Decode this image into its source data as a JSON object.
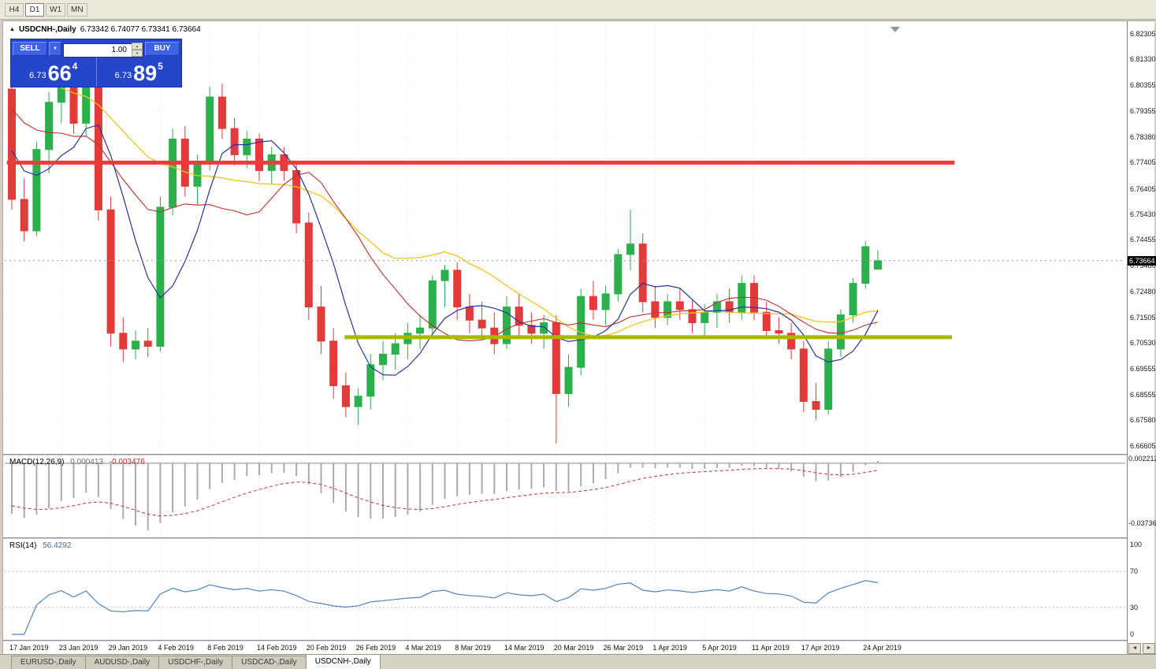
{
  "colors": {
    "up": "#2bb14c",
    "down": "#e23b3a",
    "ma_fast": "#27339e",
    "ma_mid": "#c03028",
    "ma_slow": "#edc51e",
    "macd_hist": "#ababab",
    "macd_signal": "#cc2f2f",
    "rsi_line": "#4f86c0",
    "resistance_line": "#ed3b3b",
    "support_line": "#abb800",
    "grid": "#e3e3e3",
    "price_tag_bg": "#000000",
    "panel_blue": "#2545cb"
  },
  "toolbar": {
    "timeframes": [
      "H4",
      "D1",
      "W1",
      "MN"
    ],
    "active_timeframe": "D1"
  },
  "chart_header": {
    "collapse_icon": "▲",
    "title": "USDCNH-,Daily",
    "ohlc": "6.73342 6.74077 6.73341 6.73664"
  },
  "trade_panel": {
    "sell_label": "SELL",
    "buy_label": "BUY",
    "volume": "1.00",
    "dropdown_icon": "▼",
    "spin_up_icon": "▲",
    "spin_down_icon": "▼",
    "sell_price": {
      "small": "6.73",
      "big": "66",
      "sup": "4"
    },
    "buy_price": {
      "small": "6.73",
      "big": "89",
      "sup": "5"
    }
  },
  "price_axis_labels": [
    "6.82305",
    "6.81330",
    "6.80355",
    "6.79355",
    "6.78380",
    "6.77405",
    "6.76405",
    "6.75430",
    "6.74455",
    "6.73480",
    "6.72480",
    "6.71505",
    "6.70530",
    "6.69555",
    "6.68555",
    "6.67580",
    "6.66605"
  ],
  "date_ticks": [
    {
      "i": 0,
      "label": "17 Jan 2019"
    },
    {
      "i": 4,
      "label": "23 Jan 2019"
    },
    {
      "i": 8,
      "label": "29 Jan 2019"
    },
    {
      "i": 12,
      "label": "4 Feb 2019"
    },
    {
      "i": 16,
      "label": "8 Feb 2019"
    },
    {
      "i": 20,
      "label": "14 Feb 2019"
    },
    {
      "i": 24,
      "label": "20 Feb 2019"
    },
    {
      "i": 28,
      "label": "26 Feb 2019"
    },
    {
      "i": 32,
      "label": "4 Mar 2019"
    },
    {
      "i": 36,
      "label": "8 Mar 2019"
    },
    {
      "i": 40,
      "label": "14 Mar 2019"
    },
    {
      "i": 44,
      "label": "20 Mar 2019"
    },
    {
      "i": 48,
      "label": "26 Mar 2019"
    },
    {
      "i": 52,
      "label": "1 Apr 2019"
    },
    {
      "i": 56,
      "label": "5 Apr 2019"
    },
    {
      "i": 60,
      "label": "11 Apr 2019"
    },
    {
      "i": 64,
      "label": "17 Apr 2019"
    },
    {
      "i": 69,
      "label": "24 Apr 2019"
    }
  ],
  "nav": {
    "left_icon": "◄",
    "right_icon": "►"
  },
  "bottom_tabs": {
    "tabs": [
      "EURUSD-,Daily",
      "AUDUSD-,Daily",
      "USDCHF-,Daily",
      "USDCAD-,Daily",
      "USDCNH-,Daily"
    ],
    "active": "USDCNH-,Daily"
  },
  "chart_data": {
    "type": "candlestick",
    "symbol": "USDCNH-",
    "timeframe": "Daily",
    "price_top": 6.82725,
    "price_bottom": 6.66333,
    "current_price": 6.73664,
    "current_price_label": "6.73664",
    "candles": [
      [
        "17 Jan",
        6.802,
        6.806,
        6.756,
        6.76
      ],
      [
        "18 Jan",
        6.76,
        6.768,
        6.744,
        6.748
      ],
      [
        "21 Jan",
        6.748,
        6.782,
        6.746,
        6.779
      ],
      [
        "22 Jan",
        6.779,
        6.801,
        6.77,
        6.797
      ],
      [
        "23 Jan",
        6.797,
        6.81,
        6.789,
        6.806
      ],
      [
        "24 Jan",
        6.806,
        6.809,
        6.785,
        6.789
      ],
      [
        "25 Jan",
        6.789,
        6.806,
        6.784,
        6.803
      ],
      [
        "28 Jan",
        6.803,
        6.805,
        6.752,
        6.756
      ],
      [
        "29 Jan",
        6.756,
        6.761,
        6.704,
        6.709
      ],
      [
        "30 Jan",
        6.709,
        6.715,
        6.698,
        6.703
      ],
      [
        "31 Jan",
        6.703,
        6.71,
        6.699,
        6.706
      ],
      [
        "1 Feb",
        6.706,
        6.711,
        6.7,
        6.704
      ],
      [
        "4 Feb",
        6.704,
        6.761,
        6.702,
        6.757
      ],
      [
        "5 Feb",
        6.757,
        6.787,
        6.754,
        6.783
      ],
      [
        "6 Feb",
        6.783,
        6.788,
        6.761,
        6.765
      ],
      [
        "7 Feb",
        6.765,
        6.777,
        6.758,
        6.774
      ],
      [
        "8 Feb",
        6.774,
        6.803,
        6.771,
        6.799
      ],
      [
        "11 Feb",
        6.799,
        6.804,
        6.783,
        6.787
      ],
      [
        "12 Feb",
        6.787,
        6.791,
        6.773,
        6.777
      ],
      [
        "13 Feb",
        6.777,
        6.786,
        6.772,
        6.783
      ],
      [
        "14 Feb",
        6.783,
        6.785,
        6.767,
        6.771
      ],
      [
        "15 Feb",
        6.771,
        6.78,
        6.766,
        6.777
      ],
      [
        "18 Feb",
        6.777,
        6.78,
        6.767,
        6.771
      ],
      [
        "19 Feb",
        6.771,
        6.774,
        6.747,
        6.751
      ],
      [
        "20 Feb",
        6.751,
        6.755,
        6.714,
        6.719
      ],
      [
        "21 Feb",
        6.719,
        6.727,
        6.701,
        6.706
      ],
      [
        "22 Feb",
        6.706,
        6.711,
        6.684,
        6.689
      ],
      [
        "25 Feb",
        6.689,
        6.694,
        6.677,
        6.681
      ],
      [
        "26 Feb",
        6.681,
        6.688,
        6.674,
        6.685
      ],
      [
        "27 Feb",
        6.685,
        6.701,
        6.68,
        6.697
      ],
      [
        "28 Feb",
        6.697,
        6.706,
        6.691,
        6.701
      ],
      [
        "1 Mar",
        6.701,
        6.709,
        6.695,
        6.705
      ],
      [
        "4 Mar",
        6.705,
        6.713,
        6.699,
        6.709
      ],
      [
        "5 Mar",
        6.709,
        6.716,
        6.703,
        6.711
      ],
      [
        "6 Mar",
        6.711,
        6.731,
        6.709,
        6.729
      ],
      [
        "7 Mar",
        6.729,
        6.735,
        6.719,
        6.733
      ],
      [
        "8 Mar",
        6.733,
        6.736,
        6.714,
        6.719
      ],
      [
        "11 Mar",
        6.719,
        6.724,
        6.709,
        6.714
      ],
      [
        "12 Mar",
        6.714,
        6.721,
        6.707,
        6.711
      ],
      [
        "13 Mar",
        6.711,
        6.717,
        6.701,
        6.705
      ],
      [
        "14 Mar",
        6.705,
        6.723,
        6.703,
        6.719
      ],
      [
        "15 Mar",
        6.719,
        6.724,
        6.708,
        6.712
      ],
      [
        "18 Mar",
        6.712,
        6.717,
        6.705,
        6.709
      ],
      [
        "19 Mar",
        6.709,
        6.716,
        6.703,
        6.713
      ],
      [
        "20 Mar",
        6.713,
        6.716,
        6.667,
        6.686
      ],
      [
        "21 Mar",
        6.686,
        6.701,
        6.681,
        6.696
      ],
      [
        "22 Mar",
        6.696,
        6.726,
        6.693,
        6.723
      ],
      [
        "25 Mar",
        6.723,
        6.729,
        6.714,
        6.718
      ],
      [
        "26 Mar",
        6.718,
        6.727,
        6.712,
        6.724
      ],
      [
        "27 Mar",
        6.724,
        6.741,
        6.721,
        6.739
      ],
      [
        "28 Mar",
        6.739,
        6.756,
        6.733,
        6.743
      ],
      [
        "29 Mar",
        6.743,
        6.747,
        6.717,
        6.721
      ],
      [
        "1 Apr",
        6.721,
        6.727,
        6.711,
        6.715
      ],
      [
        "2 Apr",
        6.715,
        6.724,
        6.712,
        6.721
      ],
      [
        "3 Apr",
        6.721,
        6.726,
        6.714,
        6.718
      ],
      [
        "4 Apr",
        6.718,
        6.722,
        6.709,
        6.713
      ],
      [
        "5 Apr",
        6.713,
        6.72,
        6.708,
        6.717
      ],
      [
        "8 Apr",
        6.717,
        6.724,
        6.711,
        6.721
      ],
      [
        "9 Apr",
        6.721,
        6.726,
        6.713,
        6.717
      ],
      [
        "10 Apr",
        6.717,
        6.731,
        6.714,
        6.728
      ],
      [
        "11 Apr",
        6.728,
        6.731,
        6.714,
        6.717
      ],
      [
        "12 Apr",
        6.717,
        6.721,
        6.707,
        6.71
      ],
      [
        "15 Apr",
        6.71,
        6.715,
        6.705,
        6.709
      ],
      [
        "16 Apr",
        6.709,
        6.713,
        6.699,
        6.703
      ],
      [
        "17 Apr",
        6.703,
        6.706,
        6.679,
        6.683
      ],
      [
        "18 Apr",
        6.683,
        6.69,
        6.676,
        6.68
      ],
      [
        "19 Apr",
        6.68,
        6.706,
        6.678,
        6.703
      ],
      [
        "22 Apr",
        6.703,
        6.718,
        6.7,
        6.716
      ],
      [
        "23 Apr",
        6.716,
        6.73,
        6.713,
        6.728
      ],
      [
        "24 Apr",
        6.728,
        6.744,
        6.726,
        6.742
      ],
      [
        "25 Apr",
        6.73342,
        6.74077,
        6.73341,
        6.73664
      ]
    ],
    "prehistory_closes": [
      6.875,
      6.871,
      6.868,
      6.865,
      6.861,
      6.858,
      6.855,
      6.851,
      6.848,
      6.845,
      6.841,
      6.838,
      6.835,
      6.832,
      6.829,
      6.826,
      6.823,
      6.82,
      6.817,
      6.814,
      6.811,
      6.808,
      6.805,
      6.802,
      6.799,
      6.795,
      6.789,
      6.782,
      6.776,
      6.77
    ],
    "ma_periods": {
      "fast": 6,
      "mid": 13,
      "slow": 24
    },
    "lines": {
      "resistance": {
        "price": 6.774,
        "from_i": -0.4,
        "to_i": 76.2
      },
      "support": {
        "price": 6.7075,
        "from_i": 26.9,
        "to_i": 76.0
      }
    },
    "indicators": {
      "macd": {
        "label": "MACD(12,26,9)",
        "value_main": "0.000413",
        "value_signal": "-0.003476",
        "fast": 12,
        "slow": 26,
        "signal": 9,
        "axis_top": "0.002212",
        "axis_bottom": "-0.037368"
      },
      "rsi": {
        "label": "RSI(14)",
        "value": "56.4292",
        "period": 14,
        "axis": [
          "100",
          "70",
          "30",
          "0"
        ],
        "levels": [
          70,
          30
        ]
      }
    }
  }
}
